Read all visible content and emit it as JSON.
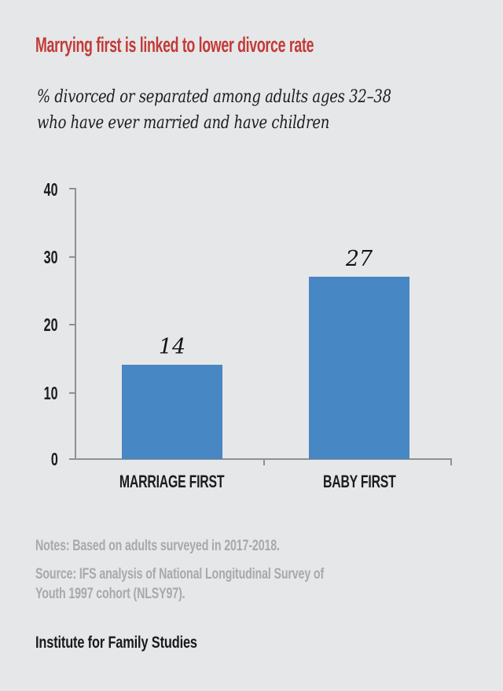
{
  "page": {
    "background_color": "#e6e7e8"
  },
  "header": {
    "title": "Marrying first is linked to lower divorce rate",
    "title_color": "#c23a37",
    "subtitle_lines": [
      "% divorced or separated among adults ages 32–38",
      "who have ever married and have children"
    ]
  },
  "chart_data": {
    "type": "bar",
    "title": "Marrying first is linked to lower divorce rate",
    "subtitle": "% divorced or separated among adults ages 32–38 who have ever married and have children",
    "categories": [
      "MARRIAGE FIRST",
      "BABY FIRST"
    ],
    "values": [
      14,
      27
    ],
    "value_labels": [
      "14",
      "27"
    ],
    "ylim": [
      0,
      40
    ],
    "ytick_labels_top_to_bottom": [
      "40",
      "30",
      "20",
      "10",
      "0"
    ],
    "bar_color": "#4787c3",
    "grid": false,
    "legend_position": "none",
    "xlabel": "",
    "ylabel": ""
  },
  "footer": {
    "notes": "Notes: Based on adults surveyed in 2017-2018.",
    "source_lines": [
      "Source: IFS analysis of National Longitudinal Survey of",
      "Youth 1997 cohort (NLSY97)."
    ],
    "brand": "Institute for Family Studies"
  }
}
